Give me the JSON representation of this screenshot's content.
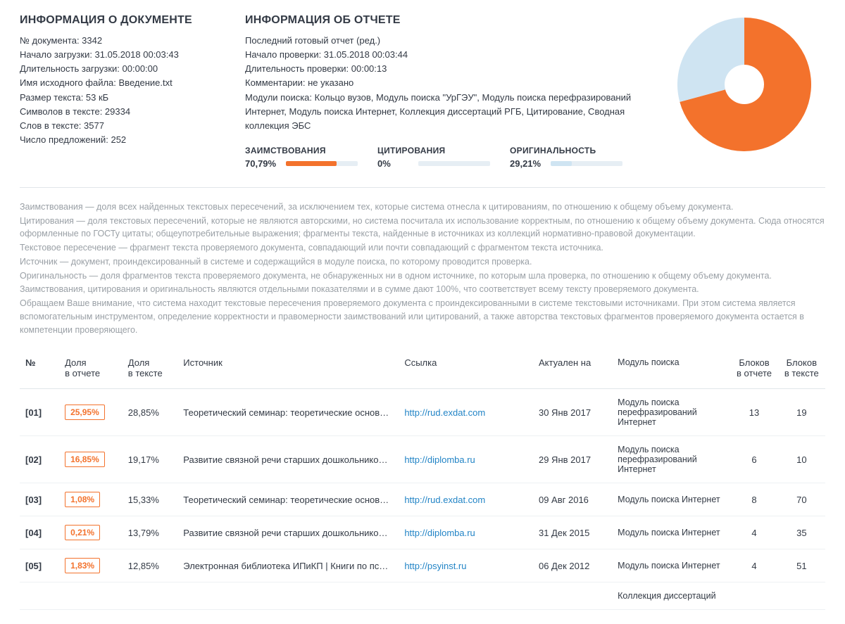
{
  "doc": {
    "heading": "ИНФОРМАЦИЯ О ДОКУМЕНТЕ",
    "num_label": "№ документа: 3342",
    "upload_start": "Начало загрузки: 31.05.2018 00:03:43",
    "upload_dur": "Длительность загрузки: 00:00:00",
    "filename": "Имя исходного файла: Введение.txt",
    "size": "Размер текста: 53 кБ",
    "chars": "Символов в тексте: 29334",
    "words": "Слов в тексте: 3577",
    "sentences": "Число предложений: 252"
  },
  "report": {
    "heading": "ИНФОРМАЦИЯ ОБ ОТЧЕТЕ",
    "last": "Последний готовый отчет (ред.)",
    "check_start": "Начало проверки: 31.05.2018 00:03:44",
    "check_dur": "Длительность проверки: 00:00:13",
    "comments": "Комментарии: не указано",
    "modules": "Модули поиска: Кольцо вузов, Модуль поиска \"УрГЭУ\", Модуль поиска перефразирований Интернет, Модуль поиска Интернет, Коллекция диссертаций РГБ, Цитирование, Сводная коллекция ЭБС"
  },
  "metrics": {
    "borrow": {
      "label": "ЗАИМСТВОВАНИЯ",
      "value": "70,79%",
      "pct": 70.79,
      "color": "#f3722c"
    },
    "cite": {
      "label": "ЦИТИРОВАНИЯ",
      "value": "0%",
      "pct": 0,
      "color": "#8bc34a"
    },
    "orig": {
      "label": "ОРИГИНАЛЬНОСТЬ",
      "value": "29,21%",
      "pct": 29.21,
      "color": "#cfe4f2"
    }
  },
  "chart": {
    "slices": [
      {
        "pct": 70.79,
        "color": "#f3722c"
      },
      {
        "pct": 29.21,
        "color": "#cfe4f2"
      }
    ],
    "inner_radius": 28,
    "outer_radius": 95,
    "bg": "#ffffff"
  },
  "explanations": [
    "Заимствования — доля всех найденных текстовых пересечений, за исключением тех, которые система отнесла к цитированиям, по отношению к общему объему документа.",
    "Цитирования — доля текстовых пересечений, которые не являются авторскими, но система посчитала их использование корректным, по отношению к общему объему документа. Сюда относятся оформленные по ГОСТу цитаты; общеупотребительные выражения; фрагменты текста, найденные в источниках из коллекций нормативно-правовой документации.",
    "Текстовое пересечение — фрагмент текста проверяемого документа, совпадающий или почти совпадающий с фрагментом текста источника.",
    "Источник — документ, проиндексированный в системе и содержащийся в модуле поиска, по которому проводится проверка.",
    "Оригинальность — доля фрагментов текста проверяемого документа, не обнаруженных ни в одном источнике, по которым шла проверка, по отношению к общему объему документа.",
    "Заимствования, цитирования и оригинальность являются отдельными показателями и в сумме дают 100%, что соответствует всему тексту проверяемого документа.",
    "Обращаем Ваше внимание, что система находит текстовые пересечения проверяемого документа с проиндексированными в системе текстовыми источниками. При этом система является вспомогательным инструментом, определение корректности и правомерности заимствований или цитирований, а также авторства текстовых фрагментов проверяемого документа остается в компетенции проверяющего."
  ],
  "table": {
    "headers": {
      "num": "№",
      "share_report": "Доля\nв отчете",
      "share_text": "Доля\nв тексте",
      "source": "Источник",
      "link": "Ссылка",
      "actual": "Актуален на",
      "module": "Модуль поиска",
      "blocks_report": "Блоков\nв отчете",
      "blocks_text": "Блоков\nв тексте"
    },
    "rows": [
      {
        "num": "[01]",
        "share_report": "25,95%",
        "share_text": "28,85%",
        "source": "Теоретический семинар: теоретические основ…",
        "link": "http://rud.exdat.com",
        "actual": "30 Янв 2017",
        "module": "Модуль поиска перефразирований Интернет",
        "blocks_report": "13",
        "blocks_text": "19"
      },
      {
        "num": "[02]",
        "share_report": "16,85%",
        "share_text": "19,17%",
        "source": "Развитие связной речи старших дошкольнико…",
        "link": "http://diplomba.ru",
        "actual": "29 Янв 2017",
        "module": "Модуль поиска перефразирований Интернет",
        "blocks_report": "6",
        "blocks_text": "10"
      },
      {
        "num": "[03]",
        "share_report": "1,08%",
        "share_text": "15,33%",
        "source": "Теоретический семинар: теоретические основ…",
        "link": "http://rud.exdat.com",
        "actual": "09 Авг 2016",
        "module": "Модуль поиска Интернет",
        "blocks_report": "8",
        "blocks_text": "70"
      },
      {
        "num": "[04]",
        "share_report": "0,21%",
        "share_text": "13,79%",
        "source": "Развитие связной речи старших дошкольнико…",
        "link": "http://diplomba.ru",
        "actual": "31 Дек 2015",
        "module": "Модуль поиска Интернет",
        "blocks_report": "4",
        "blocks_text": "35"
      },
      {
        "num": "[05]",
        "share_report": "1,83%",
        "share_text": "12,85%",
        "source": "Электронная библиотека ИПиКП | Книги по пс…",
        "link": "http://psyinst.ru",
        "actual": "06 Дек 2012",
        "module": "Модуль поиска Интернет",
        "blocks_report": "4",
        "blocks_text": "51"
      }
    ],
    "trailing_module": "Коллекция диссертаций"
  }
}
